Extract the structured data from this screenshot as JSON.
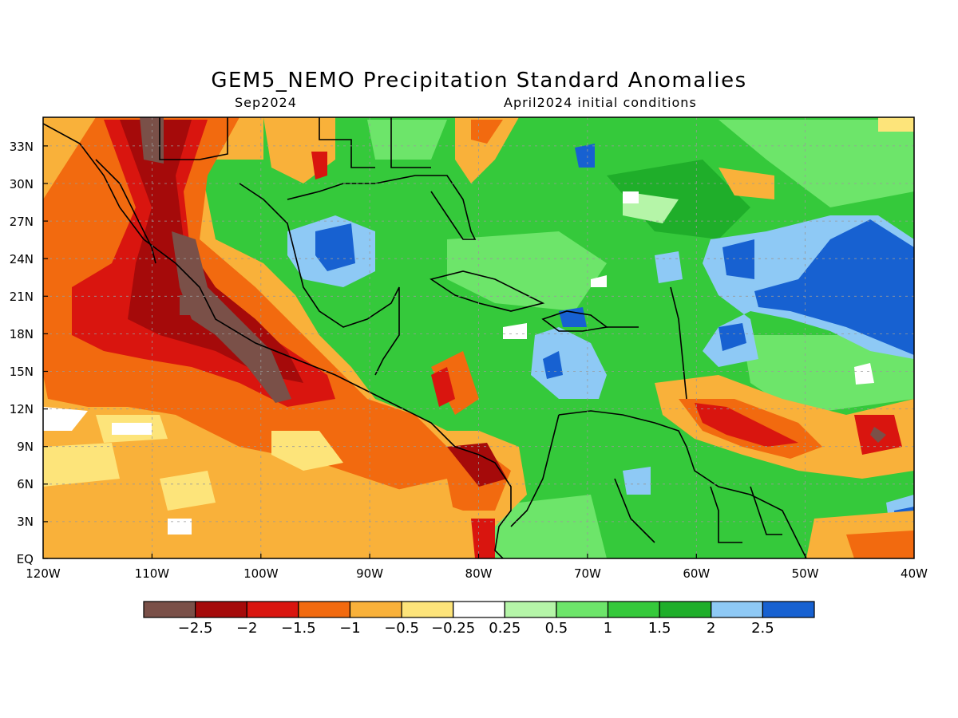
{
  "title": "GEM5_NEMO Precipitation Standard Anomalies",
  "subtitle_left": "Sep2024",
  "subtitle_right": "April2024 initial conditions",
  "map": {
    "lat_labels": [
      "EQ",
      "3N",
      "6N",
      "9N",
      "12N",
      "15N",
      "18N",
      "21N",
      "24N",
      "27N",
      "30N",
      "33N"
    ],
    "lon_labels": [
      "120W",
      "110W",
      "100W",
      "90W",
      "80W",
      "70W",
      "60W",
      "50W",
      "40W"
    ]
  },
  "colorbar": {
    "colors": [
      "#7a5048",
      "#a50a0a",
      "#d9150f",
      "#f26a0f",
      "#f9b13a",
      "#fde47a",
      "#ffffff",
      "#b5f5a8",
      "#6de56a",
      "#35c93b",
      "#1fae2a",
      "#8ec9f5",
      "#1761d1"
    ],
    "tick_labels": [
      "-2.5",
      "-2",
      "-1.5",
      "-1",
      "-0.5",
      "-0.25",
      "0.25",
      "0.5",
      "1",
      "1.5",
      "2",
      "2.5"
    ]
  }
}
